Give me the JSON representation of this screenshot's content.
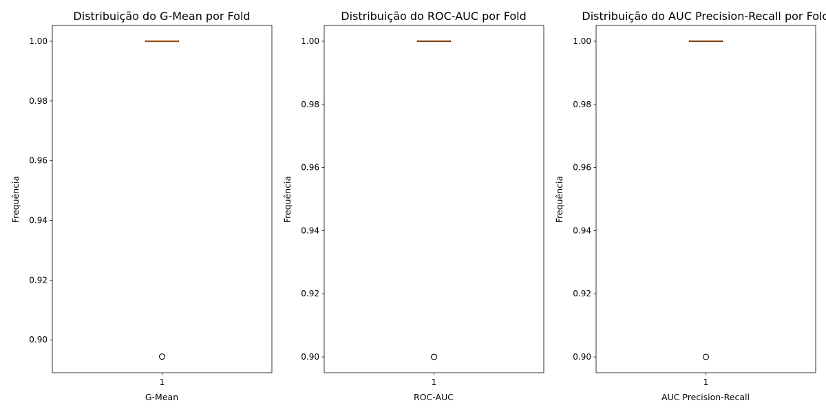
{
  "chart_data": [
    {
      "type": "box",
      "title": "Distribuição do G-Mean por Fold",
      "xlabel": "G-Mean",
      "ylabel": "Frequência",
      "categories": [
        "1"
      ],
      "ylim": [
        0.889,
        1.0053
      ],
      "yticks": [
        0.9,
        0.92,
        0.94,
        0.96,
        0.98,
        1.0
      ],
      "ytick_labels": [
        "0.90",
        "0.92",
        "0.94",
        "0.96",
        "0.98",
        "1.00"
      ],
      "box": {
        "median": 1.0,
        "q1": 1.0,
        "q3": 1.0,
        "whisker_low": 1.0,
        "whisker_high": 1.0
      },
      "outliers": [
        0.8944
      ],
      "median_color": "#ff7f0e"
    },
    {
      "type": "box",
      "title": "Distribuição do ROC-AUC por Fold",
      "xlabel": "ROC-AUC",
      "ylabel": "Frequência",
      "categories": [
        "1"
      ],
      "ylim": [
        0.895,
        1.005
      ],
      "yticks": [
        0.9,
        0.92,
        0.94,
        0.96,
        0.98,
        1.0
      ],
      "ytick_labels": [
        "0.90",
        "0.92",
        "0.94",
        "0.96",
        "0.98",
        "1.00"
      ],
      "box": {
        "median": 1.0,
        "q1": 1.0,
        "q3": 1.0,
        "whisker_low": 1.0,
        "whisker_high": 1.0
      },
      "outliers": [
        0.9
      ],
      "median_color": "#ff7f0e"
    },
    {
      "type": "box",
      "title": "Distribuição do AUC Precision-Recall por Fold",
      "xlabel": "AUC Precision-Recall",
      "ylabel": "Frequência",
      "categories": [
        "1"
      ],
      "ylim": [
        0.895,
        1.005
      ],
      "yticks": [
        0.9,
        0.92,
        0.94,
        0.96,
        0.98,
        1.0
      ],
      "ytick_labels": [
        "0.90",
        "0.92",
        "0.94",
        "0.96",
        "0.98",
        "1.00"
      ],
      "box": {
        "median": 1.0,
        "q1": 1.0,
        "q3": 1.0,
        "whisker_low": 1.0,
        "whisker_high": 1.0
      },
      "outliers": [
        0.9
      ],
      "median_color": "#ff7f0e"
    }
  ]
}
